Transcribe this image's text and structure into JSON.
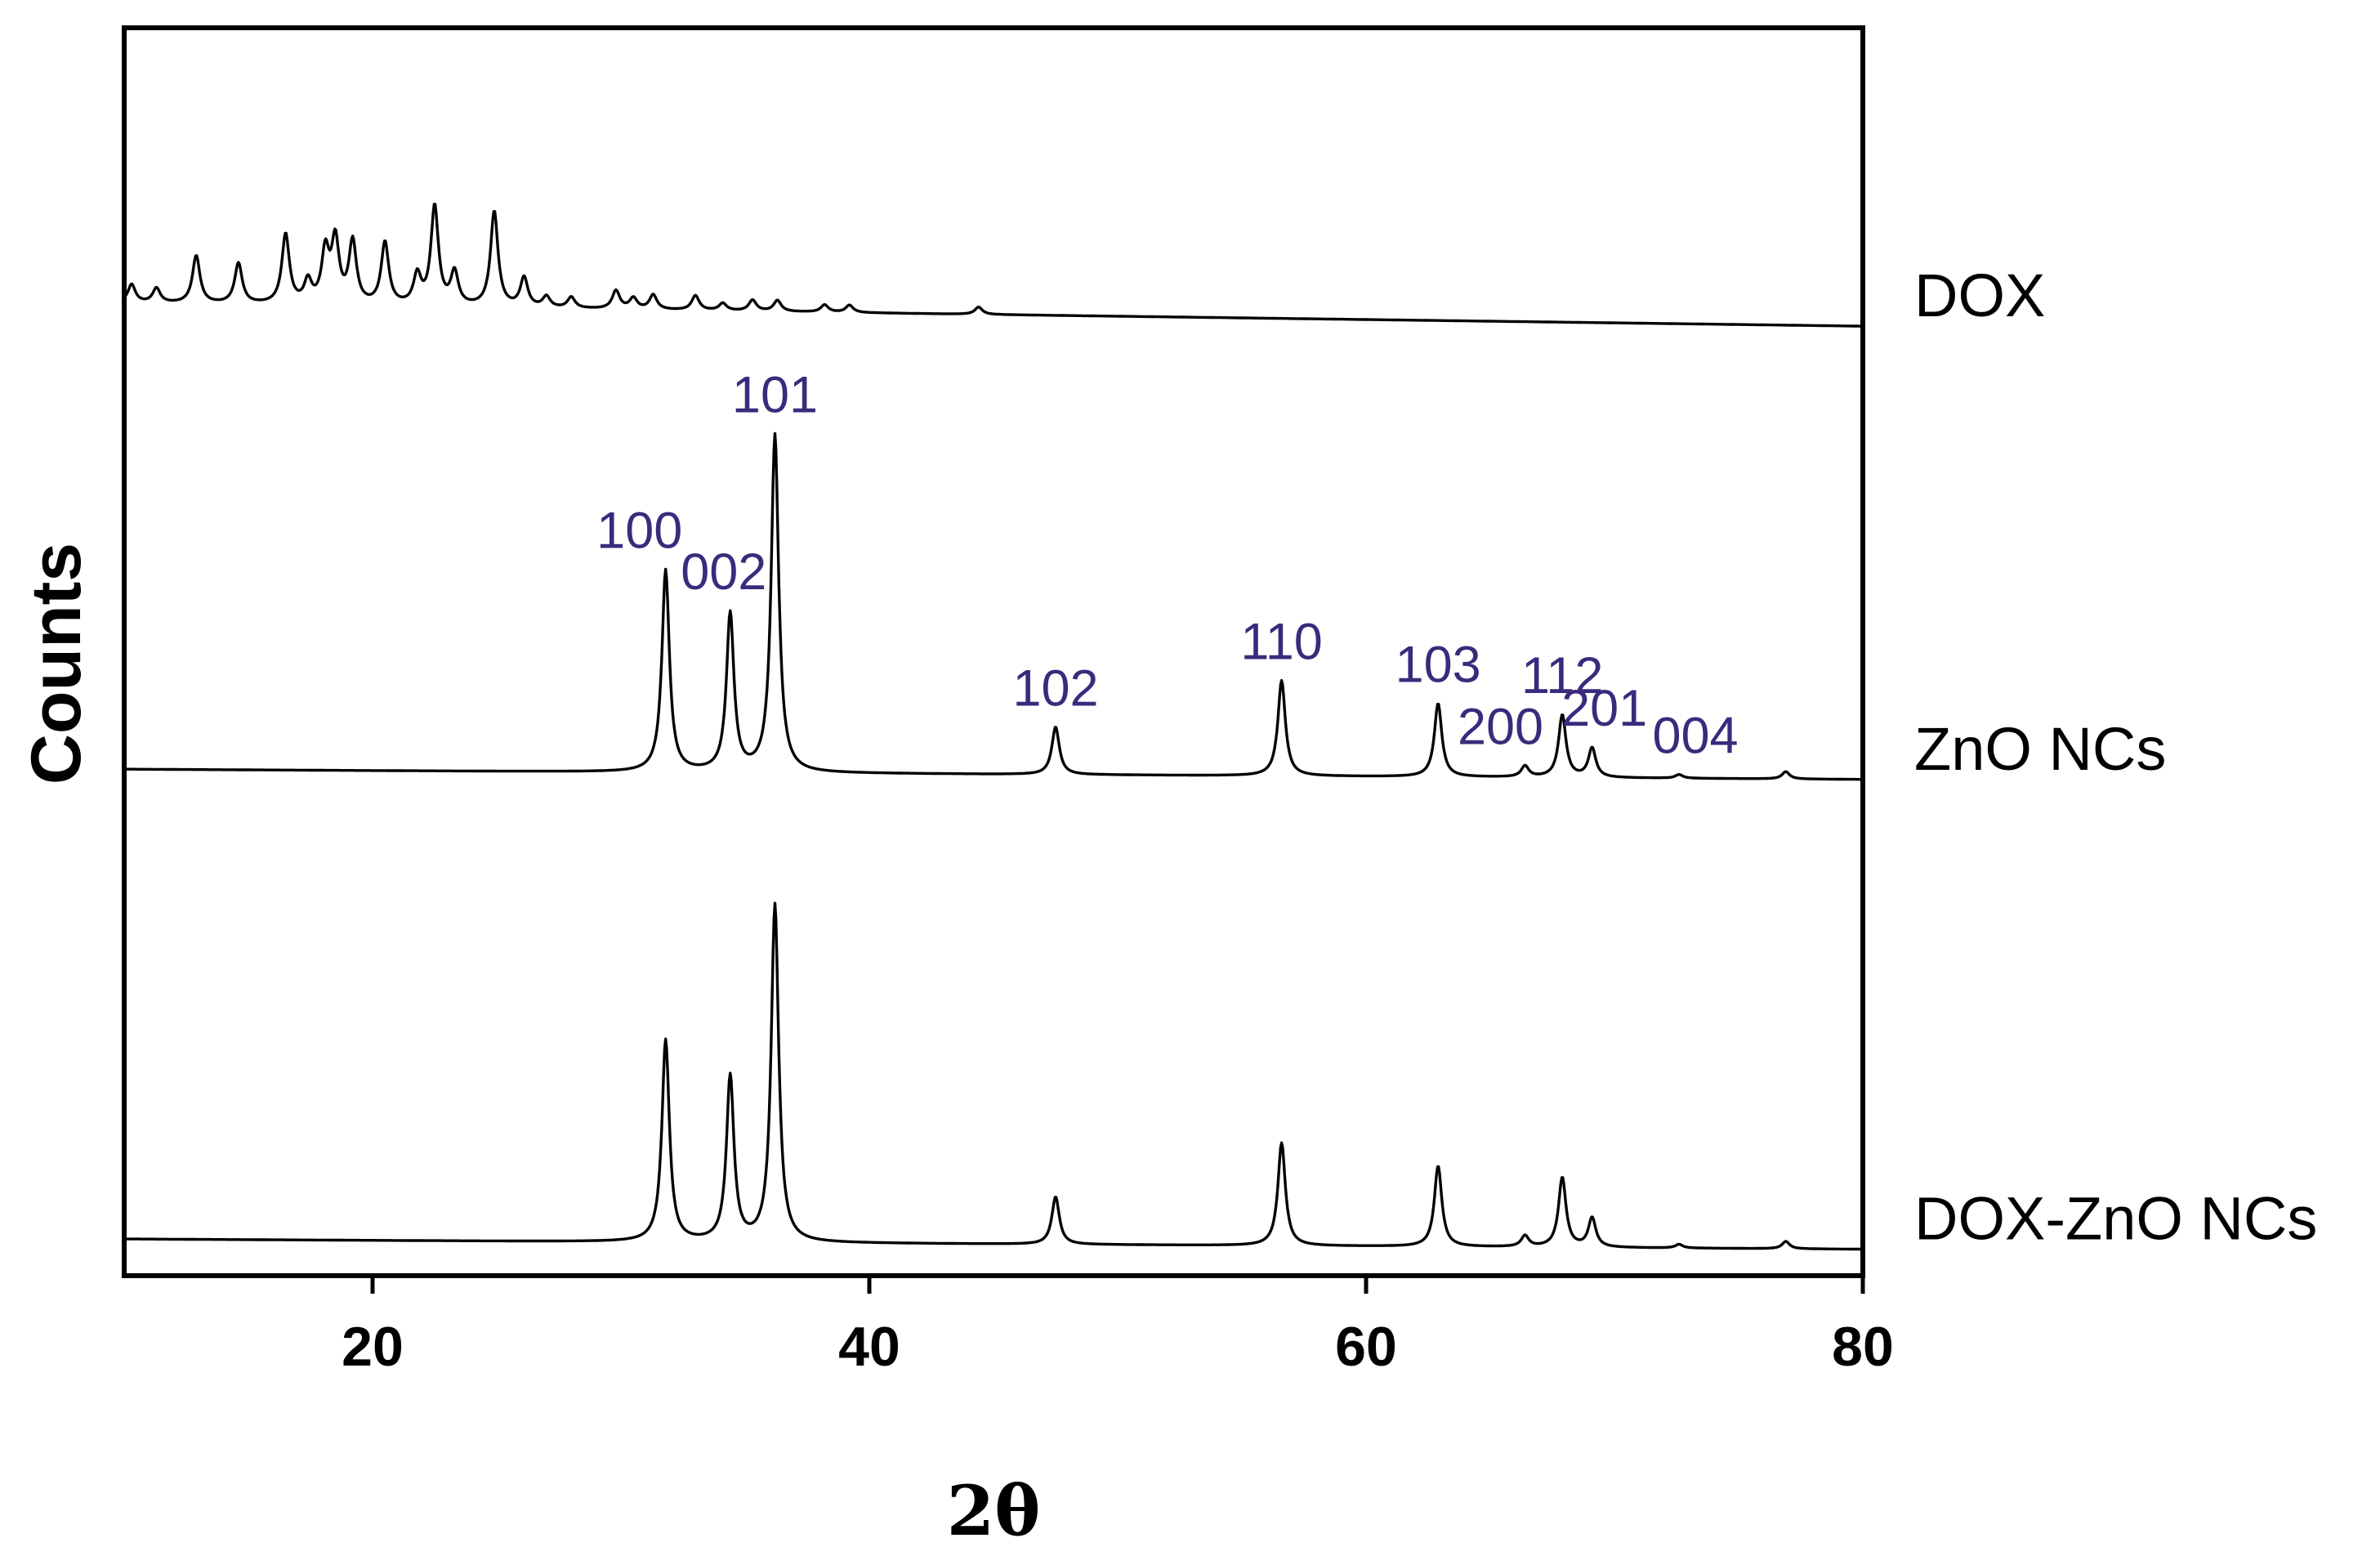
{
  "chart_data": {
    "type": "line",
    "xlabel": "2θ",
    "ylabel": "Counts",
    "xlim": [
      10,
      80
    ],
    "ylim": [
      0,
      3.4
    ],
    "x_ticks": [
      20,
      40,
      60,
      80
    ],
    "y_ticks": [],
    "grid": false,
    "legend": "none",
    "colors": {
      "line": "#000000",
      "peak_label": "#3b2a7c"
    },
    "series": [
      {
        "name": "DOX",
        "offset": 2.65,
        "baseline_slope": -0.0009,
        "peaks": [
          [
            10.3,
            0.05
          ],
          [
            11.3,
            0.04
          ],
          [
            12.9,
            0.13
          ],
          [
            14.6,
            0.11
          ],
          [
            16.5,
            0.19
          ],
          [
            17.4,
            0.06
          ],
          [
            18.1,
            0.14
          ],
          [
            18.5,
            0.17
          ],
          [
            19.2,
            0.17
          ],
          [
            20.5,
            0.17
          ],
          [
            21.8,
            0.08
          ],
          [
            22.5,
            0.27
          ],
          [
            23.3,
            0.09
          ],
          [
            24.9,
            0.26
          ],
          [
            26.1,
            0.08
          ],
          [
            27.0,
            0.03
          ],
          [
            28.0,
            0.03
          ],
          [
            29.8,
            0.05
          ],
          [
            30.5,
            0.03
          ],
          [
            31.3,
            0.04
          ],
          [
            33.0,
            0.04
          ],
          [
            34.1,
            0.02
          ],
          [
            35.3,
            0.03
          ],
          [
            36.3,
            0.03
          ],
          [
            38.2,
            0.02
          ],
          [
            39.2,
            0.02
          ],
          [
            44.4,
            0.02
          ]
        ]
      },
      {
        "name": "ZnO NCs",
        "offset": 1.38,
        "baseline_slope": -0.0004,
        "peaks": [
          [
            31.8,
            0.55
          ],
          [
            34.4,
            0.43
          ],
          [
            36.2,
            0.92
          ],
          [
            47.5,
            0.13
          ],
          [
            56.6,
            0.26
          ],
          [
            62.9,
            0.2
          ],
          [
            66.4,
            0.03
          ],
          [
            67.9,
            0.17
          ],
          [
            69.1,
            0.08
          ],
          [
            72.6,
            0.01
          ],
          [
            76.9,
            0.02
          ]
        ]
      },
      {
        "name": "DOX-ZnO NCs",
        "offset": 0.1,
        "baseline_slope": -0.0004,
        "peaks": [
          [
            31.8,
            0.55
          ],
          [
            34.4,
            0.45
          ],
          [
            36.2,
            0.92
          ],
          [
            47.5,
            0.13
          ],
          [
            56.6,
            0.28
          ],
          [
            62.9,
            0.22
          ],
          [
            66.4,
            0.03
          ],
          [
            67.9,
            0.19
          ],
          [
            69.1,
            0.08
          ],
          [
            72.6,
            0.01
          ],
          [
            76.9,
            0.02
          ]
        ]
      }
    ],
    "peak_annotations": [
      {
        "label": "100",
        "x": 31.8,
        "series": "ZnO NCs"
      },
      {
        "label": "002",
        "x": 34.4,
        "series": "ZnO NCs"
      },
      {
        "label": "101",
        "x": 36.2,
        "series": "ZnO NCs"
      },
      {
        "label": "102",
        "x": 47.5,
        "series": "ZnO NCs"
      },
      {
        "label": "110",
        "x": 56.6,
        "series": "ZnO NCs"
      },
      {
        "label": "103",
        "x": 62.9,
        "series": "ZnO NCs"
      },
      {
        "label": "200",
        "x": 66.4,
        "series": "ZnO NCs"
      },
      {
        "label": "112",
        "x": 67.9,
        "series": "ZnO NCs"
      },
      {
        "label": "201",
        "x": 69.1,
        "series": "ZnO NCs"
      },
      {
        "label": "004",
        "x": 72.6,
        "series": "ZnO NCs"
      }
    ]
  }
}
